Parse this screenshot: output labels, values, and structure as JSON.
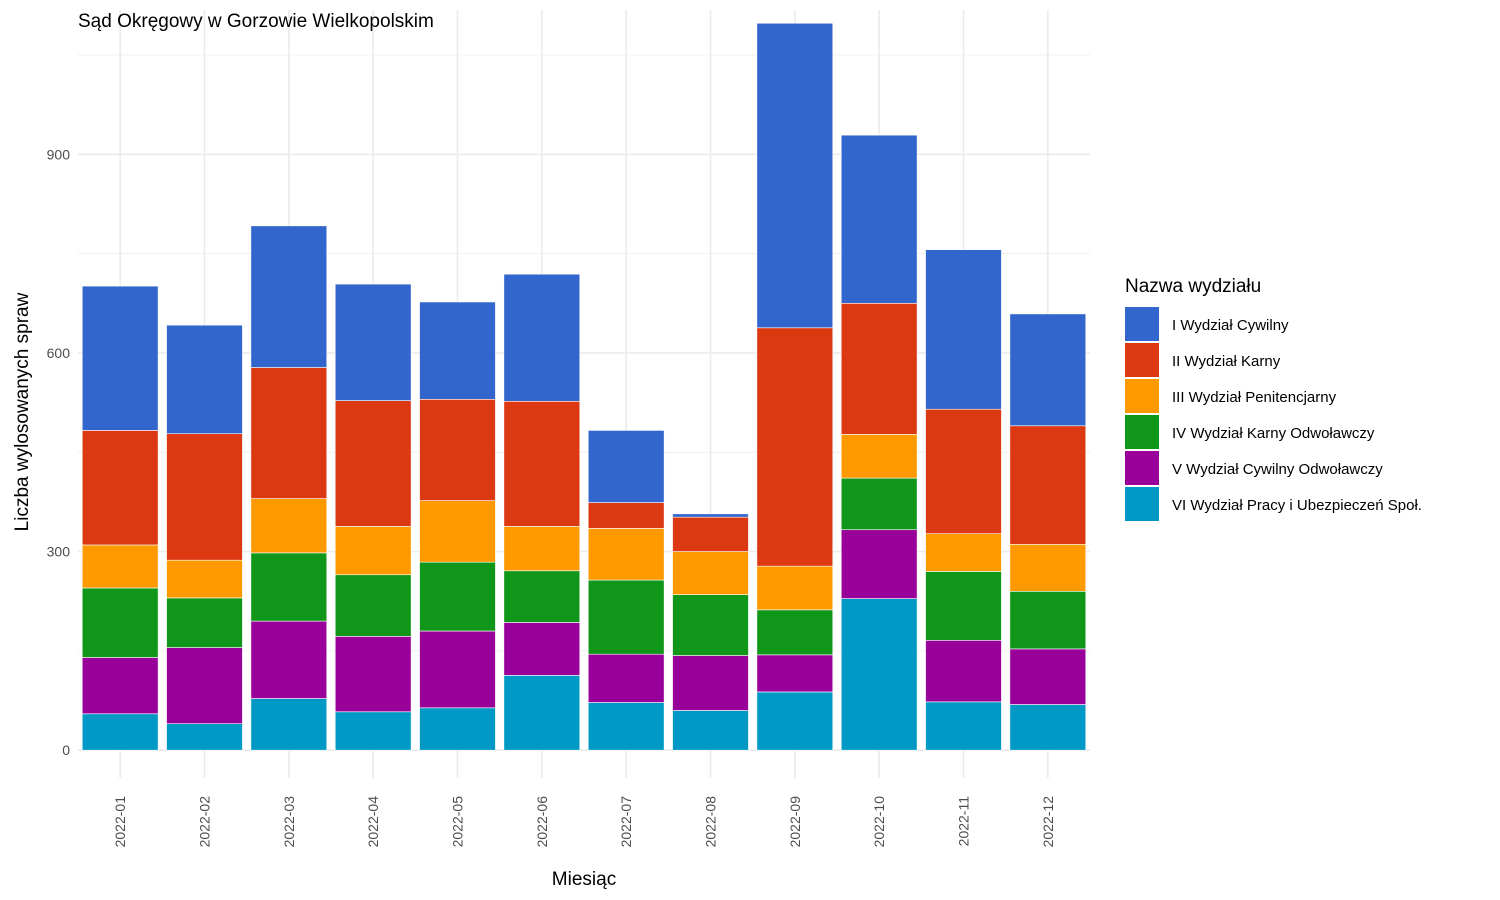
{
  "chart_data": {
    "type": "bar",
    "stacked": true,
    "title": "Sąd Okręgowy w Gorzowie Wielkopolskim",
    "xlabel": "Miesiąc",
    "ylabel": "Liczba wylosowanych spraw",
    "ylim": [
      -42,
      1118
    ],
    "yticks": [
      0,
      300,
      600,
      900
    ],
    "grid": true,
    "legend_title": "Nazwa wydziału",
    "legend_position": "right",
    "categories": [
      "2022-01",
      "2022-02",
      "2022-03",
      "2022-04",
      "2022-05",
      "2022-06",
      "2022-07",
      "2022-08",
      "2022-09",
      "2022-10",
      "2022-11",
      "2022-12"
    ],
    "series": [
      {
        "name": "VI Wydział Pracy i Ubezpieczeń Społ.",
        "color": "#0099C6",
        "values": [
          55,
          40,
          78,
          58,
          64,
          113,
          72,
          60,
          88,
          229,
          73,
          69
        ]
      },
      {
        "name": "V Wydział Cywilny Odwoławczy",
        "color": "#990099",
        "values": [
          85,
          115,
          117,
          114,
          116,
          80,
          73,
          83,
          56,
          104,
          93,
          84
        ]
      },
      {
        "name": "IV Wydział Karny Odwoławczy",
        "color": "#109618",
        "values": [
          105,
          75,
          103,
          93,
          104,
          78,
          112,
          92,
          68,
          78,
          104,
          87
        ]
      },
      {
        "name": "III Wydział Penitencjarny",
        "color": "#FF9900",
        "values": [
          65,
          57,
          82,
          73,
          93,
          67,
          78,
          65,
          66,
          66,
          57,
          71
        ]
      },
      {
        "name": "II Wydział Karny",
        "color": "#DC3912",
        "values": [
          173,
          191,
          198,
          190,
          153,
          189,
          39,
          52,
          360,
          198,
          188,
          179
        ]
      },
      {
        "name": "I Wydział Cywilny",
        "color": "#3366CC",
        "values": [
          218,
          164,
          214,
          176,
          147,
          192,
          109,
          5,
          460,
          254,
          241,
          169
        ]
      }
    ]
  }
}
